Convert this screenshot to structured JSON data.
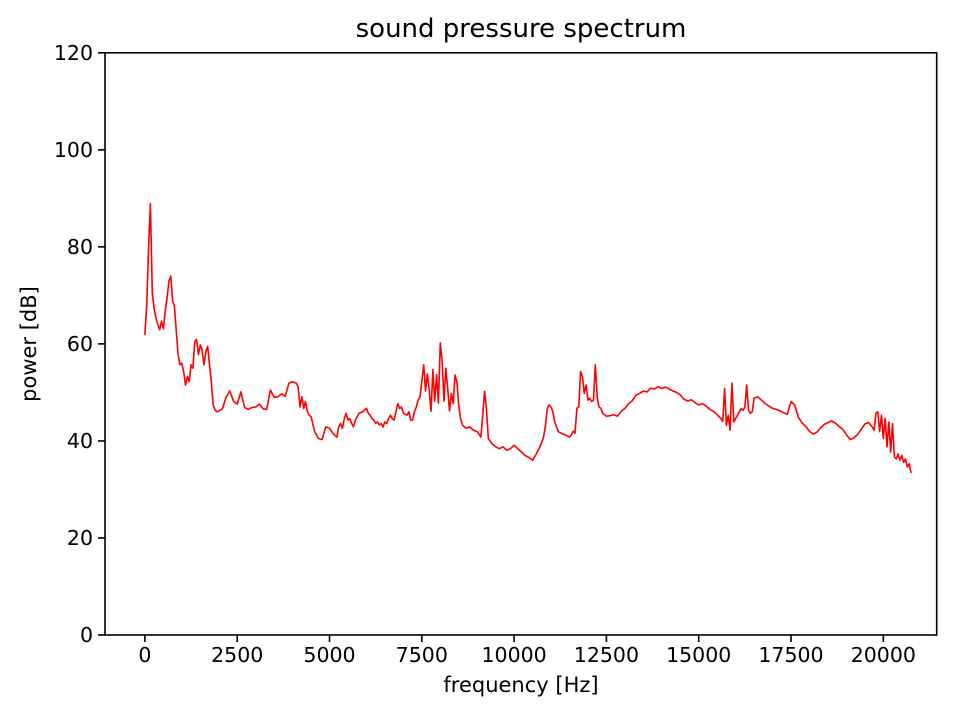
{
  "chart_data": {
    "type": "line",
    "title": "sound pressure spectrum",
    "xlabel": "frequency [Hz]",
    "ylabel": "power [dB]",
    "x_ticks": [
      0,
      2500,
      5000,
      7500,
      10000,
      12500,
      15000,
      17500,
      20000
    ],
    "y_ticks": [
      0,
      20,
      40,
      60,
      80,
      100,
      120
    ],
    "xlim": [
      -1081,
      21446
    ],
    "ylim": [
      0,
      120
    ],
    "grid": false,
    "legend": "none",
    "line_color": "#ff0000",
    "axis_color": "#000000",
    "background_color": "#ffffff",
    "series": [
      {
        "points": [
          [
            0,
            61.8
          ],
          [
            50,
            68.5
          ],
          [
            100,
            80.0
          ],
          [
            150,
            88.9
          ],
          [
            200,
            70.5
          ],
          [
            250,
            67.3
          ],
          [
            300,
            65.3
          ],
          [
            350,
            64.0
          ],
          [
            400,
            62.9
          ],
          [
            450,
            64.7
          ],
          [
            500,
            63.1
          ],
          [
            550,
            66.7
          ],
          [
            600,
            69.5
          ],
          [
            650,
            72.9
          ],
          [
            700,
            74.0
          ],
          [
            750,
            68.8
          ],
          [
            800,
            67.8
          ],
          [
            850,
            62.6
          ],
          [
            900,
            57.8
          ],
          [
            950,
            55.7
          ],
          [
            1000,
            56.0
          ],
          [
            1050,
            54.3
          ],
          [
            1100,
            51.5
          ],
          [
            1150,
            53.3
          ],
          [
            1200,
            52.2
          ],
          [
            1250,
            55.7
          ],
          [
            1300,
            55.0
          ],
          [
            1350,
            60.5
          ],
          [
            1400,
            60.9
          ],
          [
            1450,
            57.8
          ],
          [
            1500,
            59.8
          ],
          [
            1550,
            58.8
          ],
          [
            1600,
            55.7
          ],
          [
            1650,
            58.4
          ],
          [
            1700,
            59.5
          ],
          [
            1750,
            55.7
          ],
          [
            1800,
            51.9
          ],
          [
            1850,
            47.4
          ],
          [
            1900,
            46.4
          ],
          [
            1950,
            46.0
          ],
          [
            2000,
            46.2
          ],
          [
            2100,
            46.6
          ],
          [
            2200,
            49.0
          ],
          [
            2300,
            50.3
          ],
          [
            2400,
            48.2
          ],
          [
            2500,
            47.6
          ],
          [
            2600,
            50.1
          ],
          [
            2700,
            46.9
          ],
          [
            2800,
            46.5
          ],
          [
            2900,
            46.9
          ],
          [
            3000,
            47.0
          ],
          [
            3100,
            47.6
          ],
          [
            3200,
            46.6
          ],
          [
            3300,
            46.5
          ],
          [
            3400,
            50.5
          ],
          [
            3500,
            49.0
          ],
          [
            3600,
            49.1
          ],
          [
            3700,
            49.7
          ],
          [
            3800,
            49.2
          ],
          [
            3900,
            51.9
          ],
          [
            4000,
            52.2
          ],
          [
            4100,
            51.9
          ],
          [
            4150,
            51.2
          ],
          [
            4200,
            47.0
          ],
          [
            4250,
            49.1
          ],
          [
            4300,
            46.7
          ],
          [
            4350,
            48.1
          ],
          [
            4400,
            46.0
          ],
          [
            4450,
            45.3
          ],
          [
            4500,
            45.0
          ],
          [
            4600,
            41.9
          ],
          [
            4700,
            40.5
          ],
          [
            4800,
            40.3
          ],
          [
            4900,
            42.9
          ],
          [
            5000,
            42.6
          ],
          [
            5100,
            41.5
          ],
          [
            5200,
            40.8
          ],
          [
            5250,
            42.9
          ],
          [
            5300,
            43.6
          ],
          [
            5350,
            42.6
          ],
          [
            5400,
            44.6
          ],
          [
            5450,
            45.7
          ],
          [
            5500,
            44.3
          ],
          [
            5550,
            44.6
          ],
          [
            5600,
            43.6
          ],
          [
            5650,
            42.9
          ],
          [
            5700,
            44.3
          ],
          [
            5750,
            45.0
          ],
          [
            5800,
            45.7
          ],
          [
            5900,
            46.0
          ],
          [
            6000,
            46.7
          ],
          [
            6050,
            45.7
          ],
          [
            6100,
            45.3
          ],
          [
            6150,
            44.6
          ],
          [
            6200,
            44.3
          ],
          [
            6250,
            43.6
          ],
          [
            6300,
            43.9
          ],
          [
            6350,
            43.3
          ],
          [
            6400,
            43.6
          ],
          [
            6450,
            42.9
          ],
          [
            6500,
            43.9
          ],
          [
            6550,
            43.6
          ],
          [
            6600,
            44.6
          ],
          [
            6650,
            45.3
          ],
          [
            6700,
            44.6
          ],
          [
            6750,
            44.3
          ],
          [
            6800,
            46.0
          ],
          [
            6850,
            47.7
          ],
          [
            6900,
            46.7
          ],
          [
            6950,
            47.0
          ],
          [
            7000,
            45.7
          ],
          [
            7100,
            45.3
          ],
          [
            7150,
            46.0
          ],
          [
            7200,
            44.3
          ],
          [
            7250,
            44.3
          ],
          [
            7300,
            46.0
          ],
          [
            7350,
            47.0
          ],
          [
            7400,
            48.4
          ],
          [
            7450,
            49.1
          ],
          [
            7500,
            52.2
          ],
          [
            7550,
            55.7
          ],
          [
            7600,
            50.3
          ],
          [
            7650,
            53.8
          ],
          [
            7700,
            50.6
          ],
          [
            7750,
            46.1
          ],
          [
            7800,
            54.7
          ],
          [
            7850,
            48.2
          ],
          [
            7900,
            53.7
          ],
          [
            7950,
            47.8
          ],
          [
            8000,
            60.2
          ],
          [
            8050,
            56.4
          ],
          [
            8100,
            48.2
          ],
          [
            8150,
            55.0
          ],
          [
            8200,
            50.8
          ],
          [
            8250,
            46.2
          ],
          [
            8300,
            49.8
          ],
          [
            8350,
            47.7
          ],
          [
            8400,
            53.6
          ],
          [
            8450,
            52.2
          ],
          [
            8500,
            47.4
          ],
          [
            8550,
            44.6
          ],
          [
            8600,
            43.3
          ],
          [
            8650,
            42.9
          ],
          [
            8700,
            42.6
          ],
          [
            8800,
            42.9
          ],
          [
            8900,
            42.2
          ],
          [
            9000,
            41.9
          ],
          [
            9100,
            40.8
          ],
          [
            9150,
            45.3
          ],
          [
            9200,
            50.2
          ],
          [
            9250,
            46.7
          ],
          [
            9300,
            40.5
          ],
          [
            9400,
            39.4
          ],
          [
            9500,
            38.8
          ],
          [
            9600,
            38.4
          ],
          [
            9700,
            38.8
          ],
          [
            9800,
            38.1
          ],
          [
            9900,
            38.4
          ],
          [
            10000,
            39.1
          ],
          [
            10100,
            38.4
          ],
          [
            10200,
            37.7
          ],
          [
            10300,
            37.0
          ],
          [
            10400,
            36.6
          ],
          [
            10500,
            36.0
          ],
          [
            10600,
            37.3
          ],
          [
            10700,
            38.8
          ],
          [
            10800,
            40.8
          ],
          [
            10850,
            43.3
          ],
          [
            10900,
            46.7
          ],
          [
            10950,
            47.4
          ],
          [
            11000,
            47.0
          ],
          [
            11050,
            46.0
          ],
          [
            11100,
            43.9
          ],
          [
            11200,
            41.9
          ],
          [
            11300,
            41.5
          ],
          [
            11400,
            41.2
          ],
          [
            11500,
            40.8
          ],
          [
            11550,
            41.2
          ],
          [
            11600,
            42.0
          ],
          [
            11650,
            41.6
          ],
          [
            11700,
            46.7
          ],
          [
            11750,
            47.0
          ],
          [
            11800,
            54.3
          ],
          [
            11850,
            53.3
          ],
          [
            11900,
            49.8
          ],
          [
            11950,
            51.5
          ],
          [
            12000,
            48.4
          ],
          [
            12050,
            48.8
          ],
          [
            12100,
            48.1
          ],
          [
            12150,
            48.4
          ],
          [
            12200,
            55.7
          ],
          [
            12250,
            49.1
          ],
          [
            12300,
            47.0
          ],
          [
            12350,
            46.7
          ],
          [
            12400,
            45.7
          ],
          [
            12500,
            45.1
          ],
          [
            12600,
            45.2
          ],
          [
            12700,
            45.4
          ],
          [
            12800,
            45.1
          ],
          [
            12900,
            46.1
          ],
          [
            13000,
            46.7
          ],
          [
            13100,
            47.7
          ],
          [
            13200,
            48.3
          ],
          [
            13300,
            49.4
          ],
          [
            13400,
            49.8
          ],
          [
            13500,
            50.3
          ],
          [
            13600,
            50.1
          ],
          [
            13700,
            50.9
          ],
          [
            13800,
            50.7
          ],
          [
            13900,
            51.2
          ],
          [
            14000,
            50.8
          ],
          [
            14100,
            51.1
          ],
          [
            14200,
            50.7
          ],
          [
            14300,
            50.3
          ],
          [
            14400,
            50.0
          ],
          [
            14500,
            49.5
          ],
          [
            14600,
            48.6
          ],
          [
            14700,
            48.2
          ],
          [
            14800,
            48.5
          ],
          [
            14900,
            47.9
          ],
          [
            15000,
            47.4
          ],
          [
            15100,
            47.7
          ],
          [
            15200,
            47.2
          ],
          [
            15300,
            46.5
          ],
          [
            15400,
            46.1
          ],
          [
            15500,
            45.4
          ],
          [
            15600,
            44.6
          ],
          [
            15650,
            44.0
          ],
          [
            15700,
            50.8
          ],
          [
            15750,
            43.2
          ],
          [
            15800,
            45.3
          ],
          [
            15850,
            42.2
          ],
          [
            15900,
            51.9
          ],
          [
            15950,
            43.9
          ],
          [
            16000,
            44.6
          ],
          [
            16050,
            45.3
          ],
          [
            16100,
            46.0
          ],
          [
            16150,
            46.7
          ],
          [
            16200,
            46.3
          ],
          [
            16250,
            47.0
          ],
          [
            16300,
            51.5
          ],
          [
            16350,
            46.3
          ],
          [
            16400,
            45.7
          ],
          [
            16450,
            46.0
          ],
          [
            16500,
            48.8
          ],
          [
            16600,
            49.1
          ],
          [
            16700,
            48.4
          ],
          [
            16800,
            47.7
          ],
          [
            16900,
            47.2
          ],
          [
            17000,
            46.7
          ],
          [
            17100,
            46.5
          ],
          [
            17200,
            46.2
          ],
          [
            17300,
            45.8
          ],
          [
            17400,
            45.5
          ],
          [
            17500,
            48.1
          ],
          [
            17600,
            47.4
          ],
          [
            17700,
            44.9
          ],
          [
            17800,
            43.7
          ],
          [
            17900,
            43.0
          ],
          [
            18000,
            42.0
          ],
          [
            18100,
            41.4
          ],
          [
            18200,
            41.8
          ],
          [
            18300,
            42.7
          ],
          [
            18400,
            43.4
          ],
          [
            18500,
            43.8
          ],
          [
            18600,
            44.1
          ],
          [
            18700,
            43.7
          ],
          [
            18800,
            43.0
          ],
          [
            18900,
            42.4
          ],
          [
            19000,
            41.3
          ],
          [
            19100,
            40.3
          ],
          [
            19200,
            40.6
          ],
          [
            19300,
            41.3
          ],
          [
            19400,
            42.4
          ],
          [
            19500,
            43.5
          ],
          [
            19600,
            43.8
          ],
          [
            19700,
            42.9
          ],
          [
            19750,
            42.2
          ],
          [
            19800,
            45.7
          ],
          [
            19850,
            46.0
          ],
          [
            19900,
            41.9
          ],
          [
            19950,
            45.3
          ],
          [
            20000,
            40.5
          ],
          [
            20050,
            44.6
          ],
          [
            20100,
            38.8
          ],
          [
            20150,
            43.9
          ],
          [
            20200,
            37.7
          ],
          [
            20250,
            43.6
          ],
          [
            20300,
            36.7
          ],
          [
            20350,
            36.3
          ],
          [
            20400,
            37.3
          ],
          [
            20450,
            36.0
          ],
          [
            20500,
            37.0
          ],
          [
            20550,
            35.6
          ],
          [
            20600,
            36.3
          ],
          [
            20650,
            34.6
          ],
          [
            20700,
            35.3
          ],
          [
            20750,
            33.4
          ]
        ]
      }
    ]
  }
}
